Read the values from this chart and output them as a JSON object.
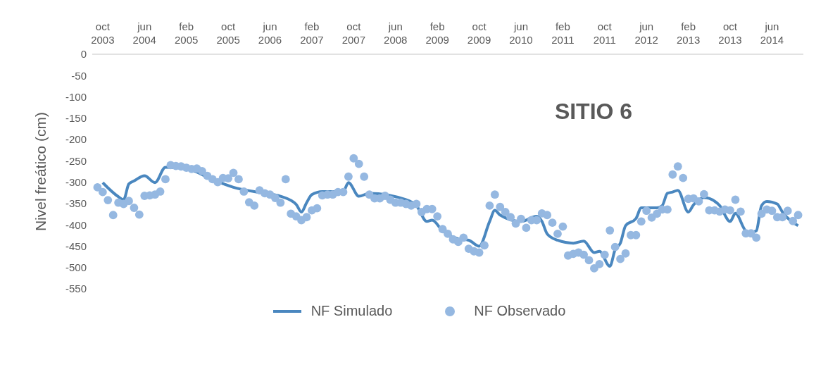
{
  "chart_data": {
    "type": "line",
    "title": "SITIO 6",
    "ylabel": "Nivel freático (cm)",
    "xlim": [
      "2003-08",
      "2014-12"
    ],
    "xticks": [
      {
        "value": "2003-10",
        "label": "oct 2003"
      },
      {
        "value": "2004-06",
        "label": "jun 2004"
      },
      {
        "value": "2005-02",
        "label": "feb 2005"
      },
      {
        "value": "2005-10",
        "label": "oct 2005"
      },
      {
        "value": "2006-06",
        "label": "jun 2006"
      },
      {
        "value": "2007-02",
        "label": "feb 2007"
      },
      {
        "value": "2007-10",
        "label": "oct 2007"
      },
      {
        "value": "2008-06",
        "label": "jun 2008"
      },
      {
        "value": "2009-02",
        "label": "feb 2009"
      },
      {
        "value": "2009-10",
        "label": "oct 2009"
      },
      {
        "value": "2010-06",
        "label": "jun 2010"
      },
      {
        "value": "2011-02",
        "label": "feb 2011"
      },
      {
        "value": "2011-10",
        "label": "oct 2011"
      },
      {
        "value": "2012-06",
        "label": "jun 2012"
      },
      {
        "value": "2013-02",
        "label": "feb 2013"
      },
      {
        "value": "2013-10",
        "label": "oct 2013"
      },
      {
        "value": "2014-06",
        "label": "jun 2014"
      }
    ],
    "ylim": [
      -550,
      0
    ],
    "yticks": [
      0,
      -50,
      -100,
      -150,
      -200,
      -250,
      -300,
      -350,
      -400,
      -450,
      -500,
      -550
    ],
    "legend": "bottom",
    "series": [
      {
        "name": "NF Simulado",
        "color": "#4a87bf",
        "marker": "none",
        "x": [
          "2003-10",
          "2004-01",
          "2004-02",
          "2004-03",
          "2004-04",
          "2004-06",
          "2004-08",
          "2004-10",
          "2005-02",
          "2005-07",
          "2005-11",
          "2006-05",
          "2006-08",
          "2006-11",
          "2006-12",
          "2007-01",
          "2007-02",
          "2007-04",
          "2007-08",
          "2007-09",
          "2007-11",
          "2008-01",
          "2008-08",
          "2008-10",
          "2008-12",
          "2009-01",
          "2009-03",
          "2009-06",
          "2009-08",
          "2009-10",
          "2009-12",
          "2010-01",
          "2010-02",
          "2010-06",
          "2010-09",
          "2010-10",
          "2010-11",
          "2011-01",
          "2011-04",
          "2011-06",
          "2011-08",
          "2011-09",
          "2011-11",
          "2011-12",
          "2012-01",
          "2012-02",
          "2012-04",
          "2012-05",
          "2012-08",
          "2012-09",
          "2012-10",
          "2012-11",
          "2012-12",
          "2013-02",
          "2013-03",
          "2013-05",
          "2013-06",
          "2013-08",
          "2013-10",
          "2013-11",
          "2014-01",
          "2014-02",
          "2014-03",
          "2014-04",
          "2014-05",
          "2014-07",
          "2014-08",
          "2014-11"
        ],
        "values": [
          -301,
          -334,
          -341,
          -304,
          -297,
          -285,
          -301,
          -265,
          -268,
          -294,
          -312,
          -326,
          -333,
          -352,
          -370,
          -348,
          -329,
          -322,
          -322,
          -301,
          -333,
          -326,
          -341,
          -355,
          -392,
          -389,
          -414,
          -433,
          -436,
          -450,
          -392,
          -366,
          -377,
          -392,
          -380,
          -392,
          -421,
          -436,
          -443,
          -438,
          -465,
          -462,
          -497,
          -458,
          -443,
          -402,
          -385,
          -360,
          -360,
          -355,
          -326,
          -323,
          -319,
          -370,
          -353,
          -336,
          -338,
          -355,
          -392,
          -373,
          -414,
          -418,
          -414,
          -355,
          -345,
          -351,
          -370,
          -402
        ]
      },
      {
        "name": "NF Observado",
        "type": "scatter",
        "color": "#95b8e1",
        "marker": "circle",
        "x": [
          "2003-09",
          "2003-10",
          "2003-11",
          "2003-12",
          "2004-01",
          "2004-02",
          "2004-03",
          "2004-04",
          "2004-05",
          "2004-06",
          "2004-07",
          "2004-08",
          "2004-09",
          "2004-10",
          "2004-11",
          "2004-12",
          "2005-01",
          "2005-02",
          "2005-03",
          "2005-04",
          "2005-05",
          "2005-06",
          "2005-07",
          "2005-08",
          "2005-09",
          "2005-10",
          "2005-11",
          "2005-12",
          "2006-01",
          "2006-02",
          "2006-03",
          "2006-04",
          "2006-05",
          "2006-06",
          "2006-07",
          "2006-08",
          "2006-09",
          "2006-10",
          "2006-11",
          "2006-12",
          "2007-01",
          "2007-02",
          "2007-03",
          "2007-04",
          "2007-05",
          "2007-06",
          "2007-07",
          "2007-08",
          "2007-09",
          "2007-10",
          "2007-11",
          "2007-12",
          "2008-01",
          "2008-02",
          "2008-03",
          "2008-04",
          "2008-05",
          "2008-06",
          "2008-07",
          "2008-08",
          "2008-09",
          "2008-10",
          "2008-11",
          "2008-12",
          "2009-01",
          "2009-02",
          "2009-03",
          "2009-04",
          "2009-05",
          "2009-06",
          "2009-07",
          "2009-08",
          "2009-09",
          "2009-10",
          "2009-11",
          "2009-12",
          "2010-01",
          "2010-02",
          "2010-03",
          "2010-04",
          "2010-05",
          "2010-06",
          "2010-07",
          "2010-08",
          "2010-09",
          "2010-10",
          "2010-11",
          "2010-12",
          "2011-01",
          "2011-02",
          "2011-03",
          "2011-04",
          "2011-05",
          "2011-06",
          "2011-07",
          "2011-08",
          "2011-09",
          "2011-10",
          "2011-11",
          "2011-12",
          "2012-01",
          "2012-02",
          "2012-03",
          "2012-04",
          "2012-05",
          "2012-06",
          "2012-07",
          "2012-08",
          "2012-09",
          "2012-10",
          "2012-11",
          "2012-12",
          "2013-01",
          "2013-02",
          "2013-03",
          "2013-04",
          "2013-05",
          "2013-06",
          "2013-07",
          "2013-08",
          "2013-09",
          "2013-10",
          "2013-11",
          "2013-12",
          "2014-01",
          "2014-02",
          "2014-03",
          "2014-04",
          "2014-05",
          "2014-06",
          "2014-07",
          "2014-08",
          "2014-09",
          "2014-10",
          "2014-11"
        ],
        "values": [
          -312,
          -323,
          -342,
          -377,
          -348,
          -351,
          -344,
          -360,
          -376,
          -332,
          -331,
          -329,
          -322,
          -293,
          -260,
          -262,
          -263,
          -266,
          -269,
          -268,
          -274,
          -285,
          -293,
          -300,
          -290,
          -291,
          -278,
          -293,
          -322,
          -347,
          -355,
          -319,
          -326,
          -329,
          -337,
          -348,
          -293,
          -374,
          -380,
          -389,
          -382,
          -366,
          -361,
          -331,
          -329,
          -329,
          -323,
          -323,
          -287,
          -244,
          -257,
          -287,
          -329,
          -338,
          -338,
          -332,
          -341,
          -348,
          -348,
          -351,
          -355,
          -351,
          -370,
          -363,
          -363,
          -380,
          -410,
          -421,
          -434,
          -440,
          -430,
          -456,
          -462,
          -465,
          -448,
          -355,
          -329,
          -358,
          -370,
          -382,
          -397,
          -386,
          -407,
          -389,
          -389,
          -373,
          -377,
          -395,
          -421,
          -404,
          -472,
          -468,
          -465,
          -470,
          -483,
          -502,
          -492,
          -470,
          -413,
          -452,
          -480,
          -467,
          -424,
          -424,
          -392,
          -367,
          -383,
          -374,
          -364,
          -364,
          -282,
          -263,
          -290,
          -339,
          -338,
          -345,
          -328,
          -366,
          -366,
          -369,
          -364,
          -366,
          -341,
          -369,
          -420,
          -420,
          -430,
          -374,
          -364,
          -367,
          -382,
          -382,
          -367,
          -391,
          -377
        ]
      }
    ]
  }
}
